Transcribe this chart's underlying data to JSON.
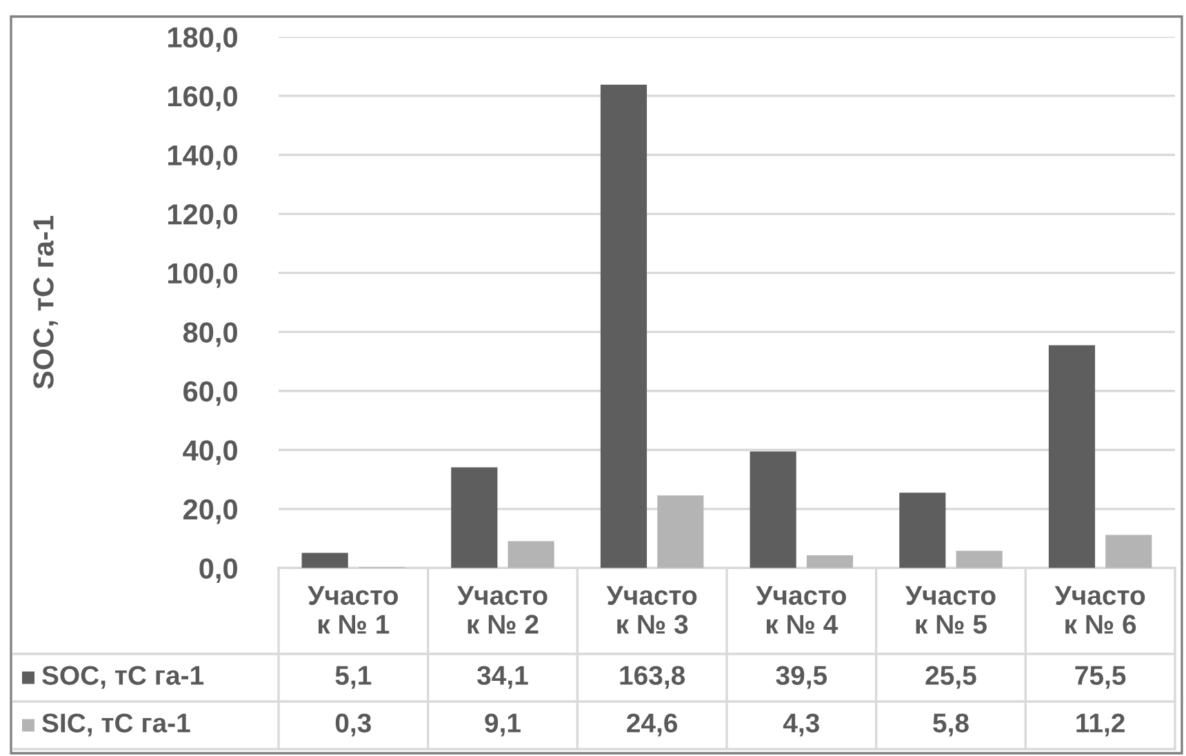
{
  "chart_data": {
    "type": "bar",
    "ylabel": "SOC, тС га-1",
    "categories": [
      "Участо\nк № 1",
      "Участо\nк № 2",
      "Участо\nк № 3",
      "Участо\nк № 4",
      "Участо\nк № 5",
      "Участо\nк № 6"
    ],
    "series": [
      {
        "name": "SOC, тС га-1",
        "color": "#5e5e5e",
        "values": [
          5.1,
          34.1,
          163.8,
          39.5,
          25.5,
          75.5
        ],
        "value_labels": [
          "5,1",
          "34,1",
          "163,8",
          "39,5",
          "25,5",
          "75,5"
        ]
      },
      {
        "name": "SIC, тС га-1",
        "color": "#b4b4b4",
        "values": [
          0.3,
          9.1,
          24.6,
          4.3,
          5.8,
          11.2
        ],
        "value_labels": [
          "0,3",
          "9,1",
          "24,6",
          "4,3",
          "5,8",
          "11,2"
        ]
      }
    ],
    "ylim": [
      0,
      180
    ],
    "yticks": [
      {
        "value": 0,
        "label": "0,0"
      },
      {
        "value": 20,
        "label": "20,0"
      },
      {
        "value": 40,
        "label": "40,0"
      },
      {
        "value": 60,
        "label": "60,0"
      },
      {
        "value": 80,
        "label": "80,0"
      },
      {
        "value": 100,
        "label": "100,0"
      },
      {
        "value": 120,
        "label": "120,0"
      },
      {
        "value": 140,
        "label": "140,0"
      },
      {
        "value": 160,
        "label": "160,0"
      },
      {
        "value": 180,
        "label": "180,0"
      }
    ],
    "grid": "y",
    "legend": "bottom left"
  }
}
